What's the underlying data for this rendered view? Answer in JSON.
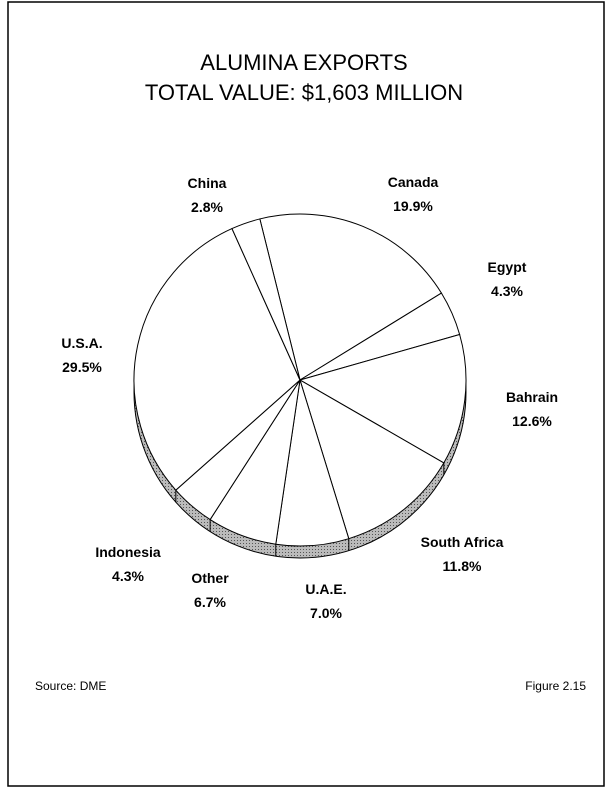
{
  "chart_data": {
    "type": "pie",
    "title": "ALUMINA EXPORTS",
    "subtitle": "TOTAL VALUE: $1,603 MILLION",
    "categories": [
      "Canada",
      "Egypt",
      "Bahrain",
      "South Africa",
      "U.A.E.",
      "Other",
      "Indonesia",
      "U.S.A.",
      "China"
    ],
    "values": [
      19.9,
      4.3,
      12.6,
      11.8,
      7.0,
      6.7,
      4.3,
      29.5,
      2.8
    ],
    "value_labels": [
      "19.9%",
      "4.3%",
      "12.6%",
      "11.8%",
      "7.0%",
      "6.7%",
      "4.3%",
      "29.5%",
      "2.8%"
    ],
    "color": "#ffffff",
    "annotations": [
      "Source: DME",
      "Figure 2.15"
    ]
  }
}
